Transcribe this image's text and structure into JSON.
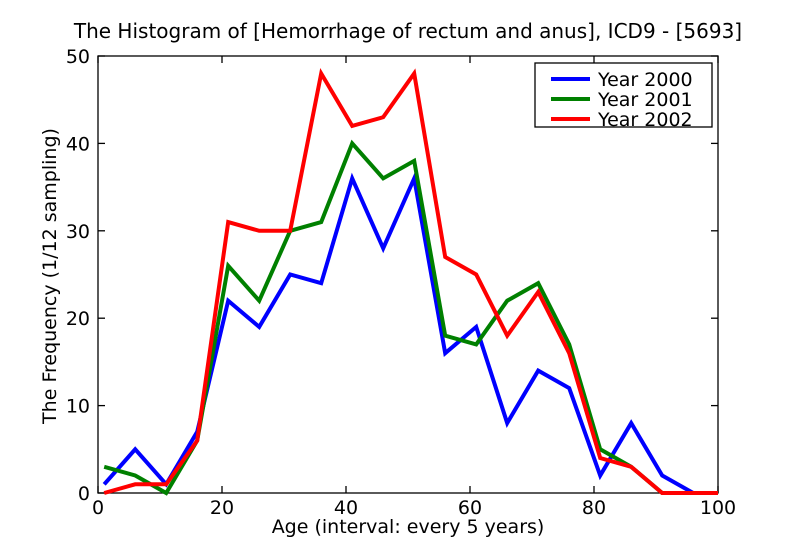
{
  "chart_data": {
    "type": "line",
    "title": "The Histogram of [Hemorrhage of rectum and anus], ICD9 - [5693]",
    "xlabel": "Age (interval: every 5 years)",
    "ylabel": "The Frequency (1/12 sampling)",
    "xlim": [
      0,
      100
    ],
    "ylim": [
      0,
      50
    ],
    "xticks": [
      0,
      20,
      40,
      60,
      80,
      100
    ],
    "yticks": [
      0,
      10,
      20,
      30,
      40,
      50
    ],
    "grid": false,
    "legend_position": "upper right",
    "background_color": "#ffffff",
    "axis_color": "#000000",
    "x": [
      1,
      6,
      11,
      16,
      21,
      26,
      31,
      36,
      41,
      46,
      51,
      56,
      61,
      66,
      71,
      76,
      81,
      86,
      91,
      96,
      100
    ],
    "series": [
      {
        "name": "Year 2000",
        "color": "#0000ff",
        "values": [
          1,
          5,
          1,
          7,
          22,
          19,
          25,
          24,
          36,
          28,
          36,
          16,
          19,
          8,
          14,
          12,
          2,
          8,
          2,
          0,
          0
        ]
      },
      {
        "name": "Year 2001",
        "color": "#008000",
        "values": [
          3,
          2,
          0,
          6,
          26,
          22,
          30,
          31,
          40,
          36,
          38,
          18,
          17,
          22,
          24,
          17,
          5,
          3,
          0,
          0,
          0
        ]
      },
      {
        "name": "Year 2002",
        "color": "#ff0000",
        "values": [
          0,
          1,
          1,
          6,
          31,
          30,
          30,
          48,
          42,
          43,
          48,
          27,
          25,
          18,
          23,
          16,
          4,
          3,
          0,
          0,
          0
        ]
      }
    ]
  }
}
